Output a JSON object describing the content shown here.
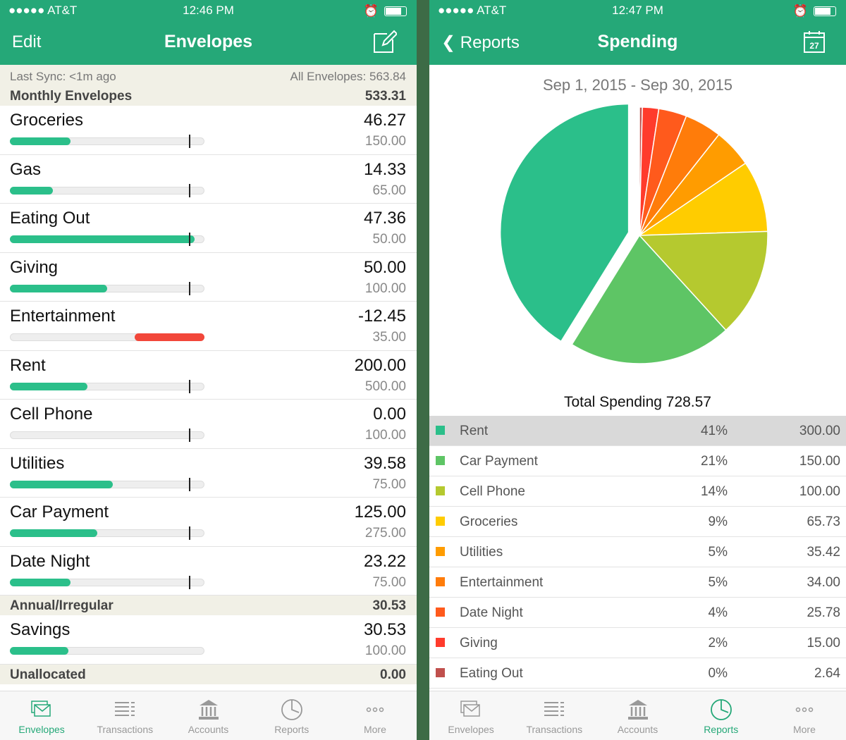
{
  "left": {
    "status": {
      "carrier": "●●●●● AT&T",
      "time": "12:46 PM"
    },
    "nav": {
      "left": "Edit",
      "title": "Envelopes"
    },
    "sync": {
      "last_sync": "Last Sync: <1m ago",
      "all": "All Envelopes: 563.84"
    },
    "sections": [
      {
        "name": "Monthly Envelopes",
        "total": "533.31",
        "rows": [
          {
            "name": "Groceries",
            "amount": "46.27",
            "budget": "150.00",
            "fill_pct": 31,
            "negative": false,
            "marker": true
          },
          {
            "name": "Gas",
            "amount": "14.33",
            "budget": "65.00",
            "fill_pct": 22,
            "negative": false,
            "marker": true
          },
          {
            "name": "Eating Out",
            "amount": "47.36",
            "budget": "50.00",
            "fill_pct": 95,
            "negative": false,
            "marker": true
          },
          {
            "name": "Giving",
            "amount": "50.00",
            "budget": "100.00",
            "fill_pct": 50,
            "negative": false,
            "marker": true
          },
          {
            "name": "Entertainment",
            "amount": "-12.45",
            "budget": "35.00",
            "fill_pct": 36,
            "negative": true,
            "marker": false
          },
          {
            "name": "Rent",
            "amount": "200.00",
            "budget": "500.00",
            "fill_pct": 40,
            "negative": false,
            "marker": true
          },
          {
            "name": "Cell Phone",
            "amount": "0.00",
            "budget": "100.00",
            "fill_pct": 0,
            "negative": false,
            "marker": true
          },
          {
            "name": "Utilities",
            "amount": "39.58",
            "budget": "75.00",
            "fill_pct": 53,
            "negative": false,
            "marker": true
          },
          {
            "name": "Car Payment",
            "amount": "125.00",
            "budget": "275.00",
            "fill_pct": 45,
            "negative": false,
            "marker": true
          },
          {
            "name": "Date Night",
            "amount": "23.22",
            "budget": "75.00",
            "fill_pct": 31,
            "negative": false,
            "marker": true
          }
        ]
      },
      {
        "name": "Annual/Irregular",
        "total": "30.53",
        "rows": [
          {
            "name": "Savings",
            "amount": "30.53",
            "budget": "100.00",
            "fill_pct": 30,
            "negative": false,
            "marker": false
          }
        ]
      },
      {
        "name": "Unallocated",
        "total": "0.00",
        "rows": []
      }
    ]
  },
  "right": {
    "status": {
      "carrier": "●●●●● AT&T",
      "time": "12:47 PM"
    },
    "nav": {
      "left": "Reports",
      "title": "Spending",
      "calendar_day": "27"
    },
    "range": "Sep 1, 2015 - Sep 30, 2015",
    "total": "Total Spending 728.57"
  },
  "chart_data": {
    "type": "pie",
    "title": "Sep 1, 2015 - Sep 30, 2015",
    "exploded": "Rent",
    "slices": [
      {
        "name": "Rent",
        "percent": "41%",
        "value": 300.0,
        "display": "300.00",
        "color": "#2bbf8a"
      },
      {
        "name": "Car Payment",
        "percent": "21%",
        "value": 150.0,
        "display": "150.00",
        "color": "#5ec565"
      },
      {
        "name": "Cell Phone",
        "percent": "14%",
        "value": 100.0,
        "display": "100.00",
        "color": "#b5c92f"
      },
      {
        "name": "Groceries",
        "percent": "9%",
        "value": 65.73,
        "display": "65.73",
        "color": "#ffcc00"
      },
      {
        "name": "Utilities",
        "percent": "5%",
        "value": 35.42,
        "display": "35.42",
        "color": "#ff9c00"
      },
      {
        "name": "Entertainment",
        "percent": "5%",
        "value": 34.0,
        "display": "34.00",
        "color": "#ff7c0a"
      },
      {
        "name": "Date Night",
        "percent": "4%",
        "value": 25.78,
        "display": "25.78",
        "color": "#ff5a1c"
      },
      {
        "name": "Giving",
        "percent": "2%",
        "value": 15.0,
        "display": "15.00",
        "color": "#ff3b2c"
      },
      {
        "name": "Eating Out",
        "percent": "0%",
        "value": 2.64,
        "display": "2.64",
        "color": "#c0504d"
      }
    ]
  },
  "tabs": [
    {
      "label": "Envelopes",
      "icon": "envelopes-icon"
    },
    {
      "label": "Transactions",
      "icon": "list-icon"
    },
    {
      "label": "Accounts",
      "icon": "bank-icon"
    },
    {
      "label": "Reports",
      "icon": "pie-chart-icon"
    },
    {
      "label": "More",
      "icon": "more-icon"
    }
  ],
  "colors": {
    "brand": "#25a878",
    "negative": "#f2473a"
  }
}
